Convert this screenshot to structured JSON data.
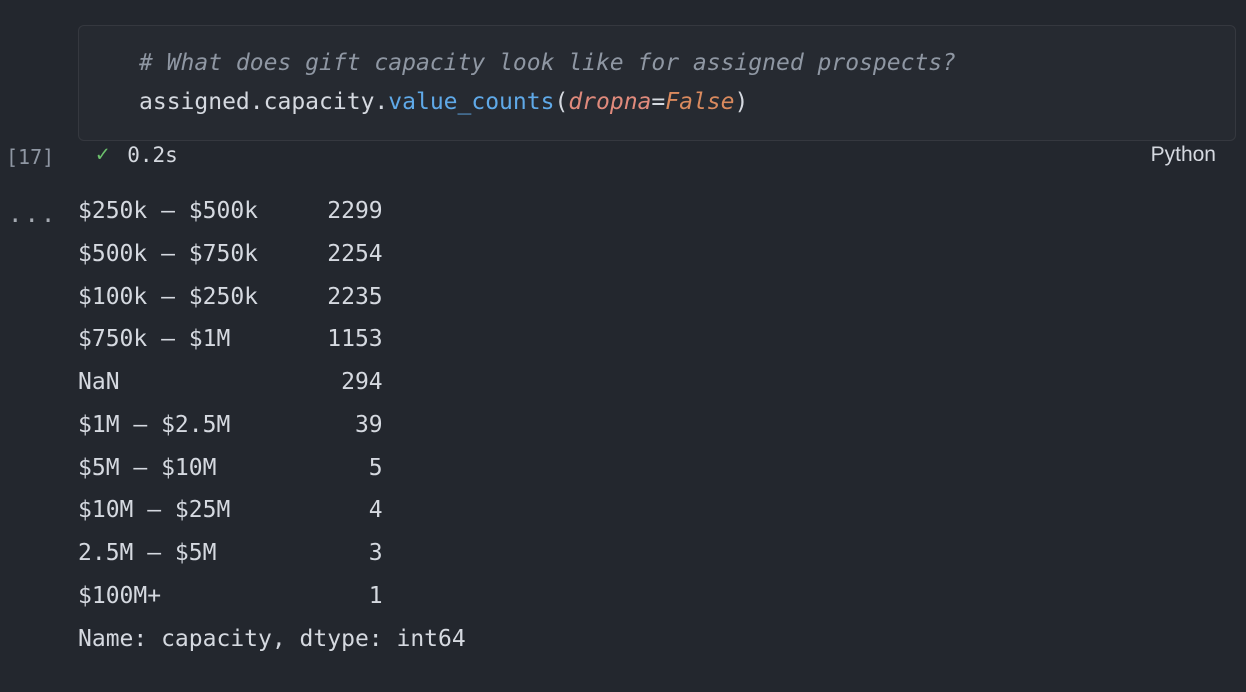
{
  "cell": {
    "exec_count": "[17]",
    "status": {
      "check_glyph": "✓",
      "time": "0.2s",
      "language": "Python"
    },
    "ellipsis": "..."
  },
  "code": {
    "comment": "# What does gift capacity look like for assigned prospects?",
    "obj": "assigned",
    "dot1": ".",
    "attr": "capacity",
    "dot2": ".",
    "method": "value_counts",
    "open_paren": "(",
    "param": "dropna",
    "eq": "=",
    "bool": "False",
    "close_paren": ")"
  },
  "output": {
    "label_width": 16,
    "count_width": 6,
    "rows": [
      {
        "label": "$250k – $500k",
        "count": 2299
      },
      {
        "label": "$500k – $750k",
        "count": 2254
      },
      {
        "label": "$100k – $250k",
        "count": 2235
      },
      {
        "label": "$750k – $1M",
        "count": 1153
      },
      {
        "label": "NaN",
        "count": 294
      },
      {
        "label": "$1M – $2.5M",
        "count": 39
      },
      {
        "label": "$5M – $10M",
        "count": 5
      },
      {
        "label": "$10M – $25M",
        "count": 4
      },
      {
        "label": "2.5M – $5M",
        "count": 3
      },
      {
        "label": "$100M+",
        "count": 1
      }
    ],
    "footer": "Name: capacity, dtype: int64"
  },
  "colors": {
    "background": "#23272e",
    "text": "#d5d9e0",
    "muted": "#8f97a3",
    "method": "#5fa9e8",
    "param": "#e08a7c",
    "bool": "#da8a5e",
    "success": "#6cc06c",
    "cell_border": "rgba(255,255,255,0.07)"
  }
}
